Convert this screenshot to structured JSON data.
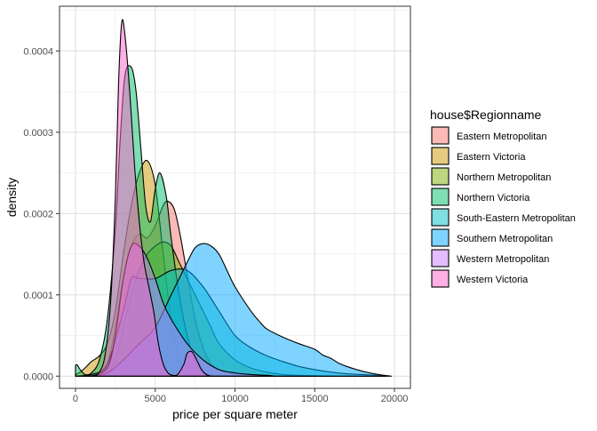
{
  "chart_data": {
    "type": "area",
    "subtype": "density",
    "xlabel": "price per square meter",
    "ylabel": "density",
    "xlim": [
      -1000,
      21000
    ],
    "ylim": [
      -1.5e-05,
      0.000455
    ],
    "x_ticks": [
      0,
      5000,
      10000,
      15000,
      20000
    ],
    "x_tick_labels": [
      "0",
      "5000",
      "10000",
      "15000",
      "20000"
    ],
    "y_ticks": [
      0,
      0.0001,
      0.0002,
      0.0003,
      0.0004
    ],
    "y_tick_labels": [
      "0.0000",
      "0.0001",
      "0.0002",
      "0.0003",
      "0.0004"
    ],
    "grid": true,
    "legend_position": "right",
    "legend_title": "house$Regionname",
    "fill_opacity": 0.5,
    "series": [
      {
        "name": "Eastern Metropolitan",
        "color": "#F8766D",
        "x": [
          700,
          1500,
          2000,
          2500,
          3000,
          3500,
          4000,
          4500,
          5000,
          5500,
          5800,
          6200,
          6600,
          7000,
          7500,
          8000,
          8500,
          9000,
          9500,
          10000,
          11000,
          11500
        ],
        "y": [
          0,
          3e-06,
          1.5e-05,
          6e-05,
          0.00012,
          0.00016,
          0.000175,
          0.00017,
          0.000185,
          0.00021,
          0.000215,
          0.000205,
          0.00017,
          0.000125,
          7e-05,
          3.5e-05,
          1.5e-05,
          8e-06,
          5e-06,
          3e-06,
          1e-06,
          0
        ]
      },
      {
        "name": "Eastern Victoria",
        "color": "#CD9600",
        "x": [
          0,
          300,
          700,
          1000,
          1500,
          2000,
          2500,
          3000,
          3500,
          4000,
          4500,
          5000,
          5500,
          6000,
          6500,
          7000,
          7500,
          8000
        ],
        "y": [
          2e-06,
          5e-06,
          1.2e-05,
          1.8e-05,
          2.5e-05,
          4e-05,
          8e-05,
          0.00015,
          0.00021,
          0.00025,
          0.000265,
          0.000235,
          0.00015,
          7e-05,
          2e-05,
          5e-06,
          1e-06,
          0
        ]
      },
      {
        "name": "Northern Metropolitan",
        "color": "#7CAE00",
        "x": [
          1500,
          2000,
          2500,
          3000,
          3500,
          4000,
          4500,
          5000,
          5500,
          6000,
          6500,
          7000,
          7500,
          8000,
          8500,
          9000,
          10000,
          11000,
          12000,
          13000,
          14000,
          15000,
          16000
        ],
        "y": [
          0,
          4e-06,
          2e-05,
          6e-05,
          0.0001,
          0.00013,
          0.00015,
          0.00016,
          0.000165,
          0.00016,
          0.00014,
          0.00012,
          0.0001,
          8e-05,
          6e-05,
          4e-05,
          2e-05,
          1e-05,
          5e-06,
          2e-06,
          1e-06,
          5e-07,
          0
        ]
      },
      {
        "name": "Northern Victoria",
        "color": "#00BE67",
        "x": [
          0,
          100,
          300,
          600,
          1000,
          1500,
          2000,
          2500,
          2800,
          3100,
          3500,
          3800,
          4100,
          4400,
          4700,
          5000,
          5300,
          5700,
          6000,
          6500,
          7000,
          7500,
          8000,
          8500,
          9000
        ],
        "y": [
          1.3e-05,
          1.4e-05,
          8e-06,
          2e-06,
          4e-06,
          2e-05,
          7e-05,
          0.00018,
          0.00029,
          0.00037,
          0.00038,
          0.00035,
          0.00028,
          0.00021,
          0.00019,
          0.00023,
          0.00025,
          0.00022,
          0.00017,
          0.0001,
          5e-05,
          2e-05,
          6e-06,
          1e-06,
          0
        ]
      },
      {
        "name": "South-Eastern Metropolitan",
        "color": "#00BFC4",
        "x": [
          0,
          1000,
          2000,
          3000,
          3500,
          4000,
          5000,
          6000,
          7000,
          8000,
          9000,
          10000,
          11000,
          12000,
          13000,
          14000,
          15000,
          16000,
          17000,
          18000,
          19000,
          19500
        ],
        "y": [
          0,
          2e-06,
          1.5e-05,
          8e-05,
          0.00012,
          0.00012,
          0.00012,
          0.00013,
          0.00013,
          0.00011,
          8e-05,
          5e-05,
          3.5e-05,
          2.5e-05,
          1.8e-05,
          1.2e-05,
          8e-06,
          5e-06,
          3e-06,
          2e-06,
          1e-06,
          0
        ]
      },
      {
        "name": "Southern Metropolitan",
        "color": "#00A9FF",
        "x": [
          1000,
          2000,
          3000,
          4000,
          5000,
          6000,
          7000,
          7500,
          8000,
          8500,
          9000,
          9500,
          10000,
          11000,
          11500,
          12000,
          13000,
          14000,
          15000,
          15500,
          16000,
          16500,
          17000,
          18000,
          19000,
          19800
        ],
        "y": [
          0,
          4e-06,
          2e-05,
          4e-05,
          6e-05,
          0.0001,
          0.00014,
          0.000158,
          0.000163,
          0.00016,
          0.00015,
          0.00013,
          0.00011,
          8e-05,
          6.8e-05,
          5.8e-05,
          4.8e-05,
          4e-05,
          3.3e-05,
          2.6e-05,
          2.2e-05,
          1.6e-05,
          1.2e-05,
          6e-06,
          2e-06,
          0
        ]
      },
      {
        "name": "Western Metropolitan",
        "color": "#C77CFF",
        "x": [
          1000,
          2000,
          2500,
          3000,
          3500,
          4000,
          4500,
          5000,
          5500,
          6000,
          7000,
          8000,
          9000,
          10000,
          11000,
          12000,
          12500
        ],
        "y": [
          0,
          1e-05,
          5e-05,
          0.00012,
          0.00016,
          0.00016,
          0.000145,
          0.00012,
          9e-05,
          7e-05,
          4e-05,
          2e-05,
          8e-06,
          4e-06,
          2e-06,
          1e-06,
          0
        ]
      },
      {
        "name": "Western Victoria",
        "color": "#FF61CC",
        "x": [
          1300,
          1800,
          2200,
          2500,
          2700,
          2900,
          3100,
          3400,
          3700,
          4000,
          4300,
          4600,
          4900,
          5200,
          5500,
          5800,
          6100,
          6400,
          6800,
          7000,
          7300,
          7600,
          7900,
          8200,
          8500
        ],
        "y": [
          0,
          2e-05,
          9e-05,
          0.00022,
          0.00036,
          0.000435,
          0.00042,
          0.00035,
          0.00026,
          0.00019,
          0.00014,
          0.00011,
          8e-05,
          4e-05,
          1.5e-05,
          4e-06,
          1e-06,
          2e-06,
          1.5e-05,
          2.8e-05,
          3e-05,
          2e-05,
          8e-06,
          2e-06,
          0
        ]
      }
    ]
  }
}
